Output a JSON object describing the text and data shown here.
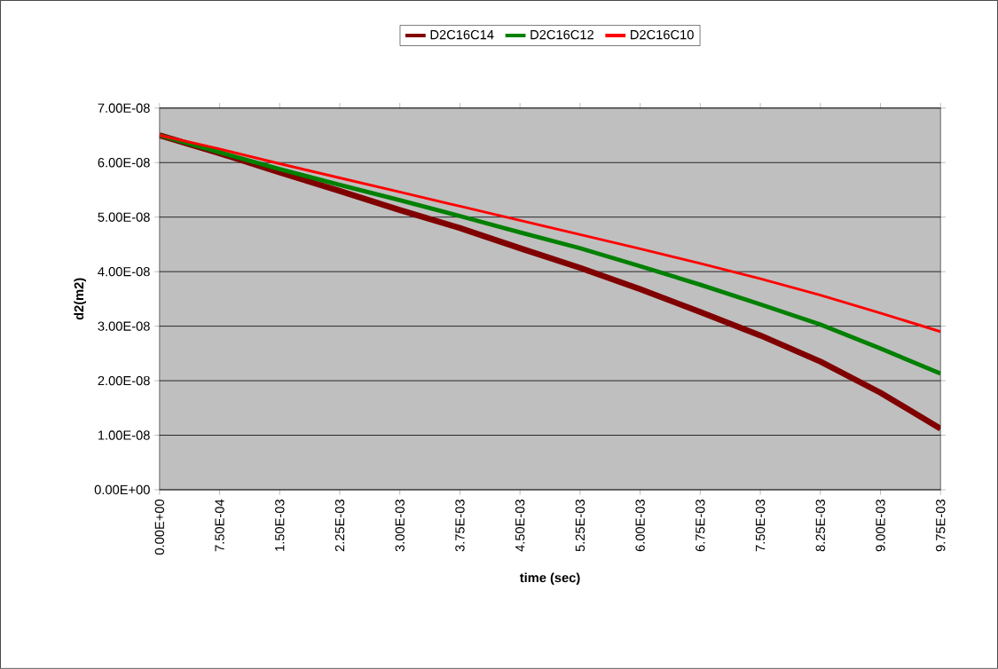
{
  "chart_data": {
    "type": "line",
    "xlabel": "time (sec)",
    "ylabel": "d2(m2)",
    "categories": [
      "0.00E+00",
      "7.50E-04",
      "1.50E-03",
      "2.25E-03",
      "3.00E-03",
      "3.75E-03",
      "4.50E-03",
      "5.25E-03",
      "6.00E-03",
      "6.75E-03",
      "7.50E-03",
      "8.25E-03",
      "9.00E-03",
      "9.75E-03"
    ],
    "series": [
      {
        "name": "D2C16C14",
        "color": "#800000",
        "values": [
          6.5e-08,
          6.17e-08,
          5.82e-08,
          5.48e-08,
          5.13e-08,
          4.8e-08,
          4.43e-08,
          4.07e-08,
          3.68e-08,
          3.26e-08,
          2.83e-08,
          2.35e-08,
          1.78e-08,
          1.12e-08
        ]
      },
      {
        "name": "D2C16C12",
        "color": "#008000",
        "values": [
          6.5e-08,
          6.19e-08,
          5.88e-08,
          5.59e-08,
          5.31e-08,
          5.02e-08,
          4.72e-08,
          4.43e-08,
          4.1e-08,
          3.76e-08,
          3.4e-08,
          3.03e-08,
          2.59e-08,
          2.13e-08
        ]
      },
      {
        "name": "D2C16C10",
        "color": "#ff0000",
        "values": [
          6.5e-08,
          6.25e-08,
          5.98e-08,
          5.72e-08,
          5.46e-08,
          5.2e-08,
          4.94e-08,
          4.68e-08,
          4.42e-08,
          4.15e-08,
          3.87e-08,
          3.57e-08,
          3.24e-08,
          2.9e-08
        ]
      }
    ],
    "ylim": [
      0,
      7e-08
    ],
    "yticks": [
      {
        "value": 0,
        "label": "0.00E+00"
      },
      {
        "value": 1e-08,
        "label": "1.00E-08"
      },
      {
        "value": 2e-08,
        "label": "2.00E-08"
      },
      {
        "value": 3e-08,
        "label": "3.00E-08"
      },
      {
        "value": 4e-08,
        "label": "4.00E-08"
      },
      {
        "value": 5e-08,
        "label": "5.00E-08"
      },
      {
        "value": 6e-08,
        "label": "6.00E-08"
      },
      {
        "value": 7e-08,
        "label": "7.00E-08"
      }
    ],
    "grid": "y",
    "legend": "top",
    "marker": "none",
    "line_style": "solid"
  }
}
